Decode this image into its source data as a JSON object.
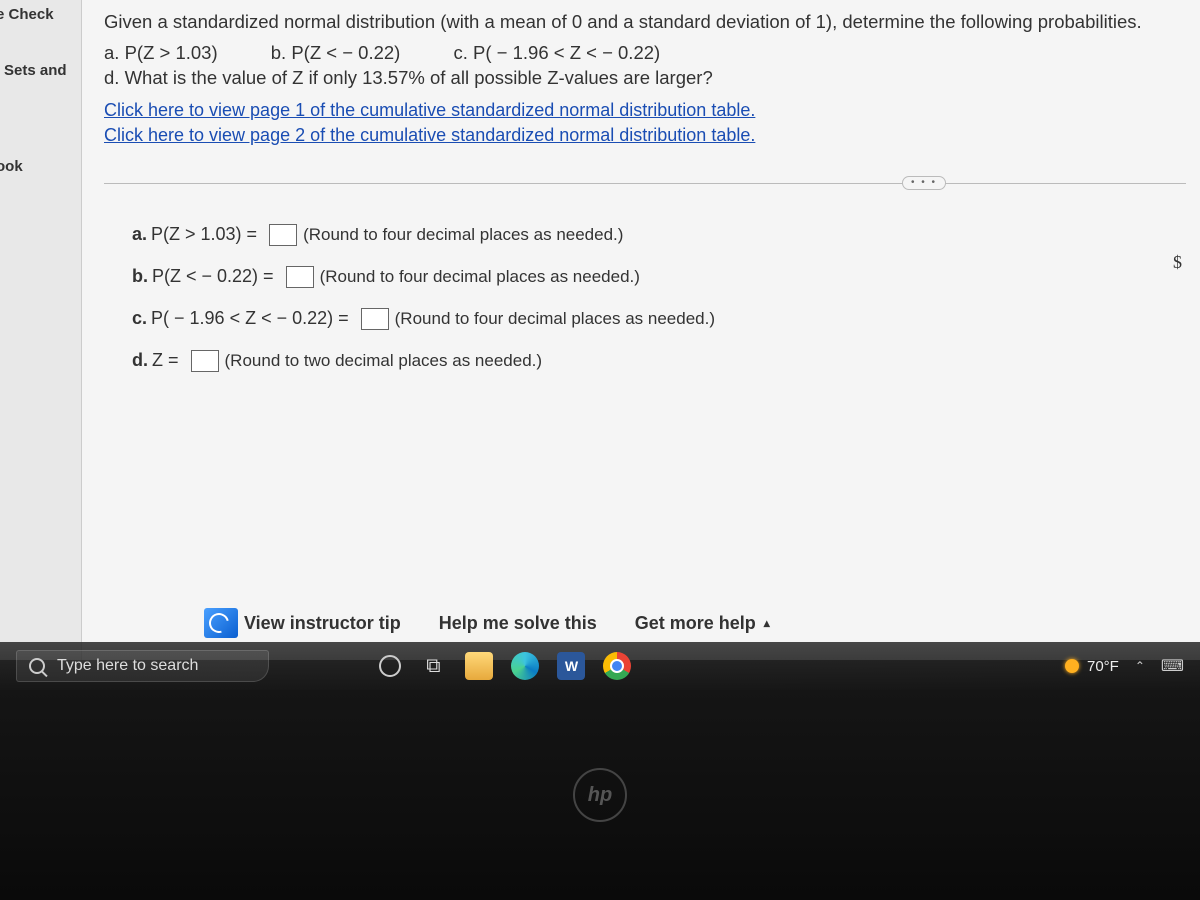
{
  "sidebar": {
    "item1": "e Check",
    "item2": "Sets and",
    "item3": "ook"
  },
  "problem": {
    "intro": "Given a standardized normal distribution (with a mean of 0 and a standard deviation of 1), determine the following probabilities.",
    "qa": "a. P(Z > 1.03)",
    "qb": "b. P(Z < − 0.22)",
    "qc": "c. P( − 1.96 < Z < − 0.22)",
    "qd": "d. What is the value of Z if only 13.57% of all possible Z-values are larger?",
    "link1": "Click here to view page 1 of the cumulative standardized normal distribution table.",
    "link2": "Click here to view page 2 of the cumulative standardized normal distribution table."
  },
  "answers": {
    "a_label": "a.",
    "a_expr": "P(Z > 1.03) =",
    "a_hint": "(Round to four decimal places as needed.)",
    "b_label": "b.",
    "b_expr": "P(Z < − 0.22) =",
    "b_hint": "(Round to four decimal places as needed.)",
    "c_label": "c.",
    "c_expr": "P( − 1.96 < Z < − 0.22) =",
    "c_hint": "(Round to four decimal places as needed.)",
    "d_label": "d.",
    "d_expr": "Z =",
    "d_hint": "(Round to two decimal places as needed.)"
  },
  "help": {
    "tip": "View instructor tip",
    "solve": "Help me solve this",
    "more": "Get more help",
    "caret": "▴"
  },
  "dots": "• • •",
  "dollar": "$",
  "taskbar": {
    "search_placeholder": "Type here to search",
    "word_letter": "W",
    "temp": "70°F",
    "caret": "⌃",
    "keyboard": "⌨"
  },
  "hp": "hp"
}
